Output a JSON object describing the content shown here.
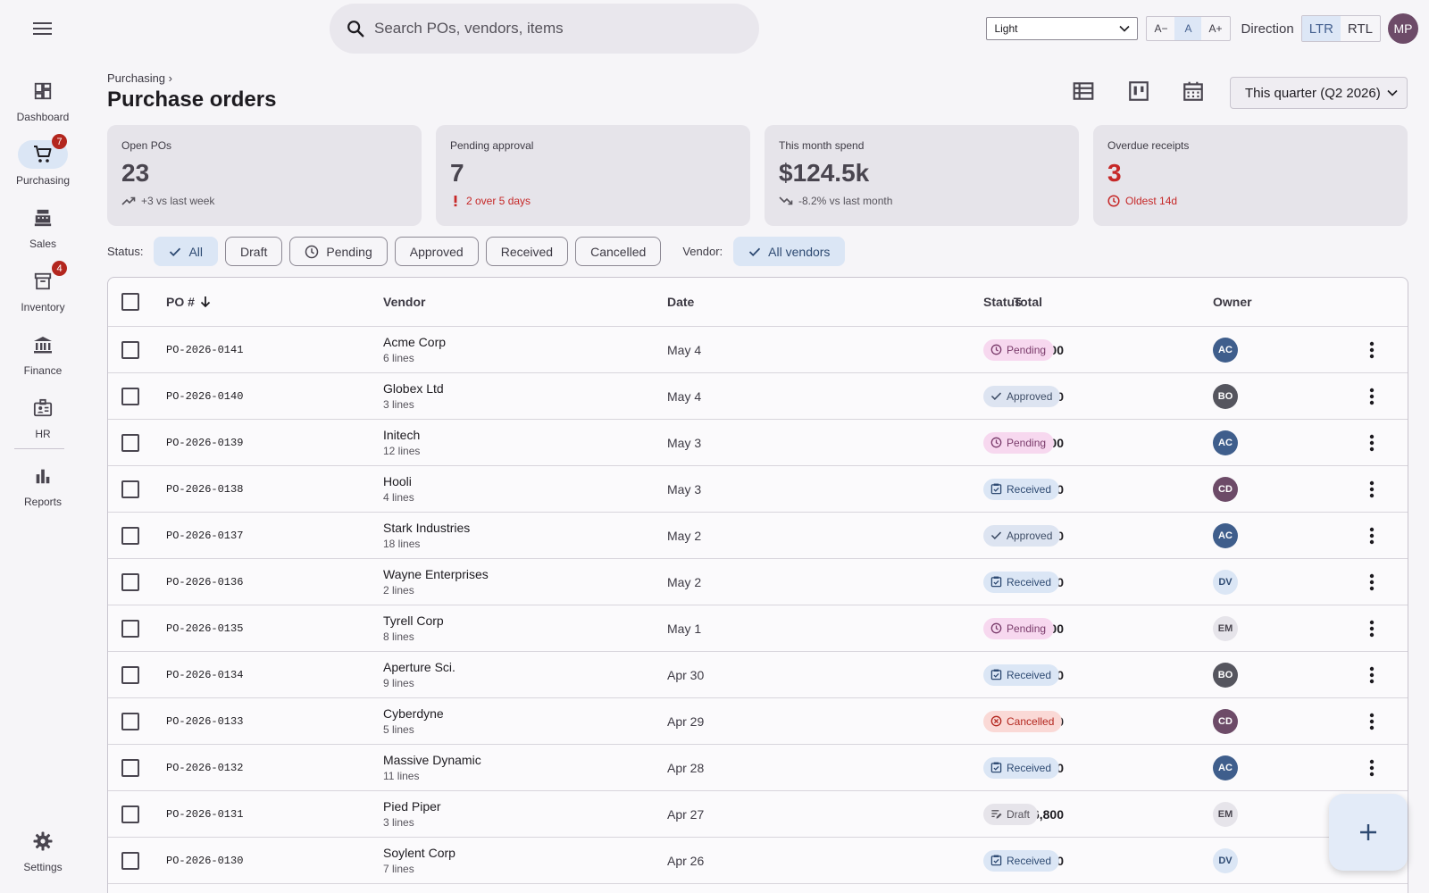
{
  "search": {
    "placeholder": "Search POs, vendors, items"
  },
  "topbar": {
    "theme_value": "Light",
    "font_sizes": [
      "A−",
      "A",
      "A+"
    ],
    "direction_label": "Direction",
    "directions": [
      "LTR",
      "RTL"
    ],
    "user_initials": "MP"
  },
  "sidebar": {
    "items": [
      {
        "label": "Dashboard",
        "icon": "dashboard-icon"
      },
      {
        "label": "Purchasing",
        "icon": "cart-icon",
        "badge": "7"
      },
      {
        "label": "Sales",
        "icon": "register-icon"
      },
      {
        "label": "Inventory",
        "icon": "archive-icon",
        "badge": "4"
      },
      {
        "label": "Finance",
        "icon": "bank-icon"
      },
      {
        "label": "HR",
        "icon": "badge-icon"
      },
      {
        "label": "Reports",
        "icon": "bar-chart-icon"
      }
    ],
    "settings_label": "Settings"
  },
  "header": {
    "breadcrumb": "Purchasing ›",
    "title": "Purchase orders",
    "period": "This quarter (Q2 2026)"
  },
  "kpis": [
    {
      "label": "Open POs",
      "value": "23",
      "sub": "+3 vs last week"
    },
    {
      "label": "Pending approval",
      "value": "7",
      "sub": "2 over 5 days"
    },
    {
      "label": "This month spend",
      "value": "$124.5k",
      "sub": "-8.2% vs last month"
    },
    {
      "label": "Overdue receipts",
      "value": "3",
      "sub": "Oldest 14d"
    }
  ],
  "filters": {
    "status_label": "Status:",
    "statuses": [
      "All",
      "Draft",
      "Pending",
      "Approved",
      "Received",
      "Cancelled"
    ],
    "vendor_label": "Vendor:",
    "vendor_value": "All vendors"
  },
  "table": {
    "headers": {
      "po": "PO #",
      "vendor": "Vendor",
      "date": "Date",
      "total": "Total",
      "status": "Status",
      "owner": "Owner"
    },
    "rows": [
      {
        "po": "PO-2026-0141",
        "vendor": "Acme Corp",
        "lines": "6 lines",
        "date": "May 4",
        "total": "$24,500",
        "status": "Pending",
        "owner": "AC"
      },
      {
        "po": "PO-2026-0140",
        "vendor": "Globex Ltd",
        "lines": "3 lines",
        "date": "May 4",
        "total": "$12,000",
        "status": "Approved",
        "owner": "BO"
      },
      {
        "po": "PO-2026-0139",
        "vendor": "Initech",
        "lines": "12 lines",
        "date": "May 3",
        "total": "$36,800",
        "status": "Pending",
        "owner": "AC"
      },
      {
        "po": "PO-2026-0138",
        "vendor": "Hooli",
        "lines": "4 lines",
        "date": "May 3",
        "total": "$8,400",
        "status": "Received",
        "owner": "CD"
      },
      {
        "po": "PO-2026-0137",
        "vendor": "Stark Industries",
        "lines": "18 lines",
        "date": "May 2",
        "total": "$92,400",
        "status": "Approved",
        "owner": "AC"
      },
      {
        "po": "PO-2026-0136",
        "vendor": "Wayne Enterprises",
        "lines": "2 lines",
        "date": "May 2",
        "total": "$3,200",
        "status": "Received",
        "owner": "DV"
      },
      {
        "po": "PO-2026-0135",
        "vendor": "Tyrell Corp",
        "lines": "8 lines",
        "date": "May 1",
        "total": "$14,600",
        "status": "Pending",
        "owner": "EM"
      },
      {
        "po": "PO-2026-0134",
        "vendor": "Aperture Sci.",
        "lines": "9 lines",
        "date": "Apr 30",
        "total": "$47,100",
        "status": "Received",
        "owner": "BO"
      },
      {
        "po": "PO-2026-0133",
        "vendor": "Cyberdyne",
        "lines": "5 lines",
        "date": "Apr 29",
        "total": "$22,000",
        "status": "Cancelled",
        "owner": "CD"
      },
      {
        "po": "PO-2026-0132",
        "vendor": "Massive Dynamic",
        "lines": "11 lines",
        "date": "Apr 28",
        "total": "$58,300",
        "status": "Received",
        "owner": "AC"
      },
      {
        "po": "PO-2026-0131",
        "vendor": "Pied Piper",
        "lines": "3 lines",
        "date": "Apr 27",
        "total": "$6,800",
        "status": "Draft",
        "owner": "EM"
      },
      {
        "po": "PO-2026-0130",
        "vendor": "Soylent Corp",
        "lines": "7 lines",
        "date": "Apr 26",
        "total": "$19,500",
        "status": "Received",
        "owner": "DV"
      }
    ]
  },
  "colors": {
    "accent": "#dbe6f5",
    "alert": "#c62828",
    "status": {
      "Pending": {
        "bg": "#f7d8ef",
        "fg": "#7a3b6b"
      },
      "Approved": {
        "bg": "#dde4f1",
        "fg": "#3e4d66"
      },
      "Received": {
        "bg": "#dbe6f5",
        "fg": "#2e4a72"
      },
      "Cancelled": {
        "bg": "#fad9d6",
        "fg": "#b3261e"
      },
      "Draft": {
        "bg": "#e6e4ea",
        "fg": "#56535b"
      }
    },
    "owners": {
      "AC": {
        "bg": "#3f5e8c",
        "fg": "#ffffff"
      },
      "BO": {
        "bg": "#55555e",
        "fg": "#ffffff"
      },
      "CD": {
        "bg": "#6d4b68",
        "fg": "#ffffff"
      },
      "DV": {
        "bg": "#dbe6f5",
        "fg": "#2e4a72"
      },
      "EM": {
        "bg": "#e6e4ea",
        "fg": "#49454f"
      }
    }
  }
}
